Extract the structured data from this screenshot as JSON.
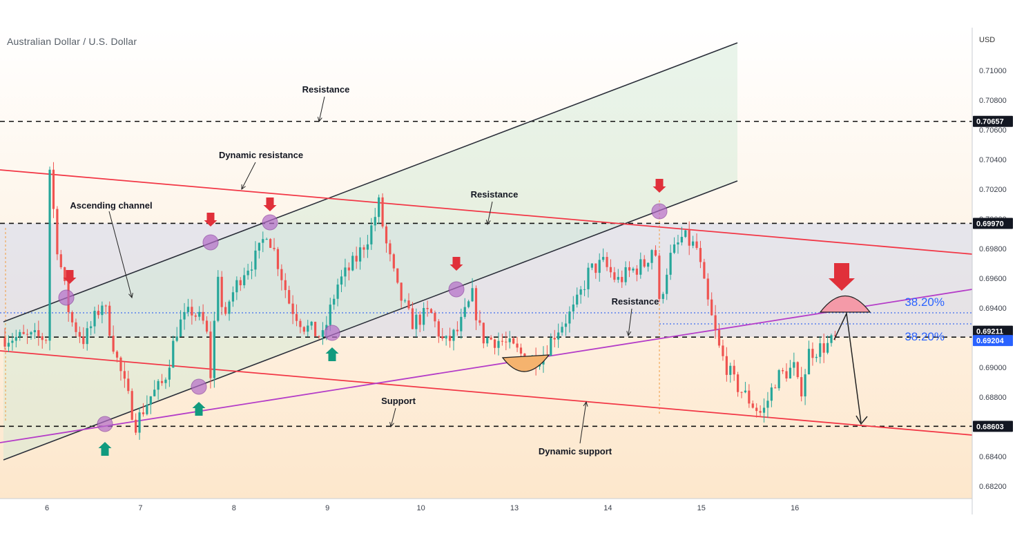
{
  "symbol_title": "Australian Dollar / U.S. Dollar",
  "currency_label": "USD",
  "colors": {
    "background_top": "#ffffff",
    "background_bottom": "#fde7cc",
    "up_candle": "#26a69a",
    "down_candle": "#ef5350",
    "channel_line": "#2a2e39",
    "channel_fill": "#cfe8d4",
    "zone_fill": "#c5cfee",
    "red_trend": "#f23645",
    "purple_trend": "#b43cc8",
    "fib_text": "#2962ff",
    "marker_circle": "#b46cc8",
    "down_arrow": "#e0303a",
    "up_arrow": "#119a7e",
    "price_tag_dark": "#131722",
    "price_tag_blue": "#2962ff",
    "dome_fill": "#f49aa8",
    "cup_fill": "#f5b36e"
  },
  "chart_data": {
    "type": "candlestick",
    "title": "Australian Dollar / U.S. Dollar",
    "xlabel": "",
    "ylabel": "USD",
    "ylim": [
      0.681,
      0.712
    ],
    "y_ticks": [
      "0.71000",
      "0.70800",
      "0.70600",
      "0.70400",
      "0.70200",
      "0.70000",
      "0.69800",
      "0.69600",
      "0.69400",
      "0.69200",
      "0.69000",
      "0.68800",
      "0.68600",
      "0.68400",
      "0.68200"
    ],
    "x_ticks": [
      "6",
      "7",
      "8",
      "9",
      "10",
      "13",
      "14",
      "15",
      "16"
    ],
    "price_tags": [
      {
        "value": "0.70657",
        "style": "dark"
      },
      {
        "value": "0.69970",
        "style": "dark"
      },
      {
        "value": "0.69211",
        "style": "dark"
      },
      {
        "value": "0.69204",
        "style": "blue"
      },
      {
        "value": "0.68603",
        "style": "dark"
      }
    ],
    "horizontal_levels": [
      0.70657,
      0.6997,
      0.69204,
      0.68603
    ],
    "fib_levels": [
      {
        "label": "38.20%",
        "value": 0.6933
      },
      {
        "label": "38.20%",
        "value": 0.69211
      }
    ],
    "price_path": [
      {
        "x": 0.0,
        "y": 0.7055
      },
      {
        "x": 0.1,
        "y": 0.6985
      },
      {
        "x": 0.25,
        "y": 0.6932
      },
      {
        "x": 0.4,
        "y": 0.6918
      },
      {
        "x": 0.6,
        "y": 0.6945
      },
      {
        "x": 0.75,
        "y": 0.6905
      },
      {
        "x": 0.95,
        "y": 0.6862
      },
      {
        "x": 1.1,
        "y": 0.688
      },
      {
        "x": 1.25,
        "y": 0.689
      },
      {
        "x": 1.4,
        "y": 0.6928
      },
      {
        "x": 1.55,
        "y": 0.6938
      },
      {
        "x": 1.7,
        "y": 0.6928
      },
      {
        "x": 1.75,
        "y": 0.6895
      },
      {
        "x": 1.85,
        "y": 0.6982
      },
      {
        "x": 1.88,
        "y": 0.692
      },
      {
        "x": 1.95,
        "y": 0.6945
      },
      {
        "x": 2.1,
        "y": 0.6965
      },
      {
        "x": 2.25,
        "y": 0.6975
      },
      {
        "x": 2.35,
        "y": 0.6992
      },
      {
        "x": 2.45,
        "y": 0.6975
      },
      {
        "x": 2.6,
        "y": 0.6942
      },
      {
        "x": 2.75,
        "y": 0.6928
      },
      {
        "x": 2.95,
        "y": 0.692
      },
      {
        "x": 3.1,
        "y": 0.6955
      },
      {
        "x": 3.3,
        "y": 0.6972
      },
      {
        "x": 3.45,
        "y": 0.699
      },
      {
        "x": 3.55,
        "y": 0.701
      },
      {
        "x": 3.62,
        "y": 0.6985
      },
      {
        "x": 3.75,
        "y": 0.6952
      },
      {
        "x": 3.9,
        "y": 0.693
      },
      {
        "x": 4.1,
        "y": 0.6937
      },
      {
        "x": 4.25,
        "y": 0.6915
      },
      {
        "x": 4.4,
        "y": 0.6925
      },
      {
        "x": 4.55,
        "y": 0.6948
      },
      {
        "x": 4.65,
        "y": 0.692
      },
      {
        "x": 4.85,
        "y": 0.6918
      },
      {
        "x": 5.0,
        "y": 0.6912
      },
      {
        "x": 5.15,
        "y": 0.6905
      },
      {
        "x": 5.3,
        "y": 0.6908
      },
      {
        "x": 5.45,
        "y": 0.6925
      },
      {
        "x": 5.65,
        "y": 0.694
      },
      {
        "x": 5.8,
        "y": 0.6965
      },
      {
        "x": 5.95,
        "y": 0.697
      },
      {
        "x": 6.1,
        "y": 0.6958
      },
      {
        "x": 6.25,
        "y": 0.6965
      },
      {
        "x": 6.4,
        "y": 0.697
      },
      {
        "x": 6.5,
        "y": 0.6985
      },
      {
        "x": 6.55,
        "y": 0.6942
      },
      {
        "x": 6.65,
        "y": 0.6972
      },
      {
        "x": 6.8,
        "y": 0.6988
      },
      {
        "x": 6.95,
        "y": 0.698
      },
      {
        "x": 7.05,
        "y": 0.6948
      },
      {
        "x": 7.2,
        "y": 0.691
      },
      {
        "x": 7.35,
        "y": 0.689
      },
      {
        "x": 7.55,
        "y": 0.6875
      },
      {
        "x": 7.65,
        "y": 0.6868
      },
      {
        "x": 7.8,
        "y": 0.6893
      },
      {
        "x": 8.0,
        "y": 0.69
      },
      {
        "x": 8.05,
        "y": 0.688
      },
      {
        "x": 8.15,
        "y": 0.691
      },
      {
        "x": 8.35,
        "y": 0.6915
      },
      {
        "x": 8.45,
        "y": 0.692
      }
    ],
    "annotations": [
      {
        "text": "Resistance"
      },
      {
        "text": "Dynamic resistance"
      },
      {
        "text": "Ascending channel"
      },
      {
        "text": "Resistance"
      },
      {
        "text": "Resistance"
      },
      {
        "text": "Support"
      },
      {
        "text": "Dynamic support"
      }
    ]
  }
}
